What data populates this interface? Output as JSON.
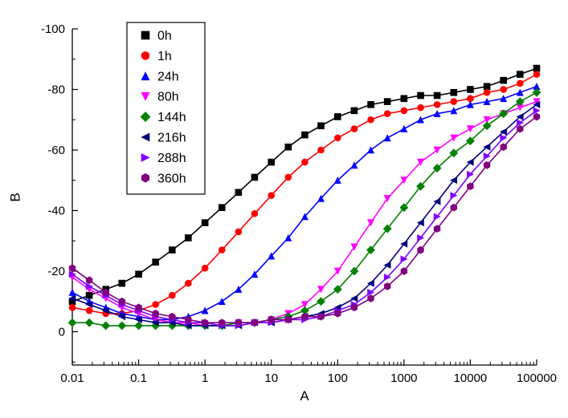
{
  "figure": {
    "background": "#ffffff"
  },
  "chart_data": {
    "type": "line",
    "title": "",
    "xlabel": "A",
    "ylabel": "B",
    "x_scale": "log",
    "y_axis_inverted": true,
    "xlim": [
      0.01,
      100000
    ],
    "ylim": [
      -100,
      11
    ],
    "grid": false,
    "legend_position": "top-left-inside",
    "x_tick_values": [
      0.01,
      0.1,
      1,
      10,
      100,
      1000,
      10000,
      100000
    ],
    "x_tick_labels": [
      "0.01",
      "0.1",
      "1",
      "10",
      "100",
      "1000",
      "10000",
      "100000"
    ],
    "y_tick_values": [
      -100,
      -80,
      -60,
      -40,
      -20,
      0
    ],
    "y_tick_labels": [
      "-100",
      "-80",
      "-60",
      "-40",
      "-20",
      "0"
    ],
    "x": [
      0.01,
      0.018,
      0.032,
      0.056,
      0.1,
      0.18,
      0.32,
      0.56,
      1,
      1.8,
      3.2,
      5.6,
      10,
      18,
      32,
      56,
      100,
      178,
      316,
      562,
      1000,
      1780,
      3160,
      5620,
      10000,
      17800,
      31600,
      56200,
      100000
    ],
    "series": [
      {
        "name": "0h",
        "color": "#000000",
        "marker": "square",
        "values": [
          -10,
          -12,
          -14,
          -16,
          -19,
          -23,
          -27,
          -31,
          -36,
          -41,
          -46,
          -51,
          -56,
          -61,
          -65,
          -68,
          -71,
          -73,
          -75,
          -76,
          -77,
          -78,
          -78,
          -79,
          -80,
          -81,
          -83,
          -85,
          -87
        ]
      },
      {
        "name": "1h",
        "color": "#ff0000",
        "marker": "circle",
        "values": [
          -8,
          -7,
          -6,
          -6,
          -7,
          -9,
          -12,
          -16,
          -21,
          -27,
          -33,
          -39,
          -45,
          -51,
          -56,
          -60,
          -64,
          -67,
          -70,
          -72,
          -73,
          -74,
          -75,
          -76,
          -77,
          -79,
          -80,
          -82,
          -85
        ]
      },
      {
        "name": "24h",
        "color": "#0000ff",
        "marker": "triangle-up",
        "values": [
          -13,
          -10,
          -8,
          -6,
          -5,
          -4,
          -4,
          -5,
          -7,
          -10,
          -14,
          -19,
          -25,
          -31,
          -38,
          -44,
          -50,
          -55,
          -60,
          -64,
          -67,
          -70,
          -72,
          -73,
          -75,
          -76,
          -77,
          -79,
          -81
        ]
      },
      {
        "name": "80h",
        "color": "#ff00ff",
        "marker": "triangle-down",
        "values": [
          -18,
          -14,
          -11,
          -8,
          -6,
          -4,
          -3,
          -3,
          -2,
          -2,
          -3,
          -3,
          -4,
          -6,
          -9,
          -14,
          -20,
          -28,
          -36,
          -44,
          -50,
          -56,
          -60,
          -64,
          -67,
          -70,
          -72,
          -74,
          -76
        ]
      },
      {
        "name": "144h",
        "color": "#008000",
        "marker": "diamond",
        "values": [
          -3,
          -3,
          -2,
          -2,
          -2,
          -2,
          -2,
          -2,
          -2,
          -2,
          -3,
          -3,
          -4,
          -5,
          -7,
          -10,
          -14,
          -20,
          -27,
          -34,
          -41,
          -48,
          -54,
          -59,
          -63,
          -68,
          -72,
          -76,
          -79
        ]
      },
      {
        "name": "216h",
        "color": "#000080",
        "marker": "triangle-left",
        "values": [
          -11,
          -9,
          -7,
          -5,
          -4,
          -3,
          -3,
          -2,
          -2,
          -2,
          -2,
          -3,
          -3,
          -4,
          -5,
          -6,
          -8,
          -11,
          -16,
          -22,
          -29,
          -36,
          -43,
          -50,
          -56,
          -61,
          -66,
          -71,
          -75
        ]
      },
      {
        "name": "288h",
        "color": "#8000ff",
        "marker": "triangle-right",
        "values": [
          -19,
          -15,
          -12,
          -9,
          -7,
          -5,
          -4,
          -3,
          -3,
          -2,
          -2,
          -3,
          -3,
          -4,
          -4,
          -5,
          -7,
          -9,
          -13,
          -18,
          -24,
          -31,
          -38,
          -45,
          -52,
          -58,
          -64,
          -69,
          -73
        ]
      },
      {
        "name": "360h",
        "color": "#800080",
        "marker": "hexagon",
        "values": [
          -21,
          -17,
          -13,
          -10,
          -8,
          -6,
          -5,
          -4,
          -3,
          -3,
          -3,
          -3,
          -4,
          -4,
          -5,
          -5,
          -6,
          -8,
          -11,
          -15,
          -20,
          -27,
          -34,
          -41,
          -48,
          -55,
          -61,
          -67,
          -71
        ]
      }
    ]
  }
}
